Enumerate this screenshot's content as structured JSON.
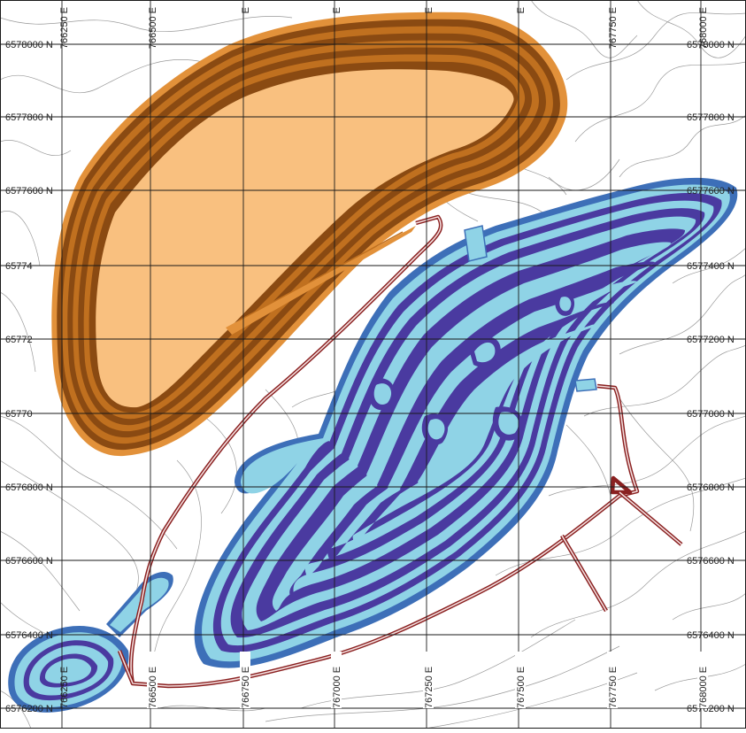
{
  "map": {
    "colors": {
      "dump_fill": "#f9c07f",
      "dump_bench_dark": "#8a4a12",
      "dump_bench_mid": "#c0701f",
      "dump_edge": "#e2913a",
      "pit_fill": "#8fd3e6",
      "pit_bench": "#4a3aa0",
      "pit_edge": "#3d6fb8",
      "road": "#8a2020",
      "contour": "#9a9a9a",
      "grid": "#1a1a1a"
    },
    "northing_labels": [
      "6578000 N",
      "6577800 N",
      "6577600 N",
      "6577400 N",
      "6577200 N",
      "6577000 N",
      "6576800 N",
      "6576600 N",
      "6576400 N",
      "6576200 N"
    ],
    "left_northing_labels": [
      "6578000 N",
      "6577800 N",
      "6577600 N",
      "65774",
      "65772",
      "65770",
      "6576800 N",
      "6576600 N",
      "6576400 N",
      "6576200 N"
    ],
    "easting_top_labels": [
      "766250 E",
      "766500 E",
      "E",
      "E",
      "E",
      "E",
      "767750 E",
      "768000 E"
    ],
    "easting_bottom_labels": [
      "766250 E",
      "766500 E",
      "766750 E",
      "767000 E",
      "767250 E",
      "767500 E",
      "767750 E",
      "768000 E"
    ]
  }
}
